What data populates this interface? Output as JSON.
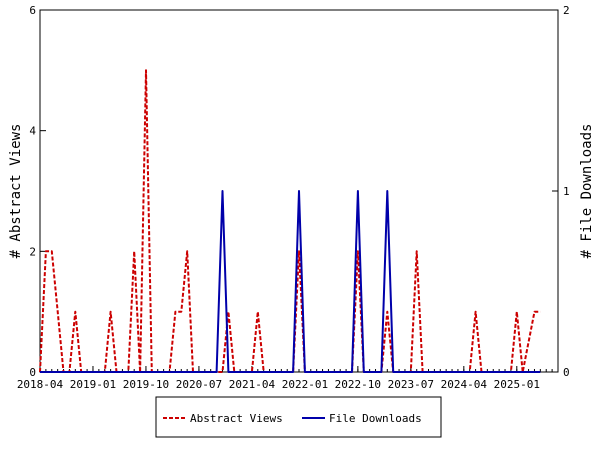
{
  "chart_data": {
    "type": "line",
    "xlabel": "",
    "ylabel_left": "# Abstract Views",
    "ylabel_right": "# File Downloads",
    "x_range": [
      "2018-04",
      "2025-08"
    ],
    "x_ticks": [
      "2018-04",
      "2019-01",
      "2019-10",
      "2020-07",
      "2021-04",
      "2022-01",
      "2022-10",
      "2023-07",
      "2024-04",
      "2025-01"
    ],
    "y_left": {
      "range": [
        0,
        6
      ],
      "ticks": [
        "0",
        "2",
        "4",
        "6"
      ]
    },
    "y_right": {
      "range": [
        0,
        2
      ],
      "ticks": [
        "0",
        "1",
        "2"
      ]
    },
    "grid": false,
    "legend": {
      "position": "bottom-center"
    },
    "series": [
      {
        "name": "Abstract Views",
        "axis": "left",
        "color": "#cc0000",
        "style": "dashed",
        "points": [
          [
            "2018-04",
            0
          ],
          [
            "2018-05",
            2
          ],
          [
            "2018-06",
            2
          ],
          [
            "2018-07",
            1
          ],
          [
            "2018-08",
            0
          ],
          [
            "2018-09",
            0
          ],
          [
            "2018-10",
            1
          ],
          [
            "2018-11",
            0
          ],
          [
            "2019-01",
            0
          ],
          [
            "2019-02",
            0
          ],
          [
            "2019-03",
            0
          ],
          [
            "2019-04",
            1
          ],
          [
            "2019-05",
            0
          ],
          [
            "2019-07",
            0
          ],
          [
            "2019-08",
            2
          ],
          [
            "2019-09",
            0
          ],
          [
            "2019-10",
            5
          ],
          [
            "2019-11",
            0
          ],
          [
            "2020-02",
            0
          ],
          [
            "2020-03",
            1
          ],
          [
            "2020-04",
            1
          ],
          [
            "2020-05",
            2
          ],
          [
            "2020-06",
            0
          ],
          [
            "2020-11",
            0
          ],
          [
            "2020-12",
            1
          ],
          [
            "2021-01",
            0
          ],
          [
            "2021-04",
            0
          ],
          [
            "2021-05",
            1
          ],
          [
            "2021-06",
            0
          ],
          [
            "2021-11",
            0
          ],
          [
            "2021-12",
            2
          ],
          [
            "2022-01",
            0
          ],
          [
            "2022-09",
            0
          ],
          [
            "2022-10",
            2
          ],
          [
            "2022-11",
            0
          ],
          [
            "2023-02",
            0
          ],
          [
            "2023-03",
            1
          ],
          [
            "2023-04",
            0
          ],
          [
            "2023-07",
            0
          ],
          [
            "2023-08",
            2
          ],
          [
            "2023-09",
            0
          ],
          [
            "2024-05",
            0
          ],
          [
            "2024-06",
            1
          ],
          [
            "2024-07",
            0
          ],
          [
            "2024-12",
            0
          ],
          [
            "2025-01",
            1
          ],
          [
            "2025-02",
            0
          ],
          [
            "2025-04",
            1
          ],
          [
            "2025-05",
            1
          ]
        ]
      },
      {
        "name": "File Downloads",
        "axis": "right",
        "color": "#0000aa",
        "style": "solid",
        "points": [
          [
            "2018-04",
            0
          ],
          [
            "2020-10",
            0
          ],
          [
            "2020-11",
            1
          ],
          [
            "2020-12",
            0
          ],
          [
            "2021-11",
            0
          ],
          [
            "2021-12",
            1
          ],
          [
            "2022-01",
            0
          ],
          [
            "2022-09",
            0
          ],
          [
            "2022-10",
            1
          ],
          [
            "2022-11",
            0
          ],
          [
            "2023-02",
            0
          ],
          [
            "2023-03",
            1
          ],
          [
            "2023-04",
            0
          ],
          [
            "2025-05",
            0
          ]
        ]
      }
    ]
  }
}
